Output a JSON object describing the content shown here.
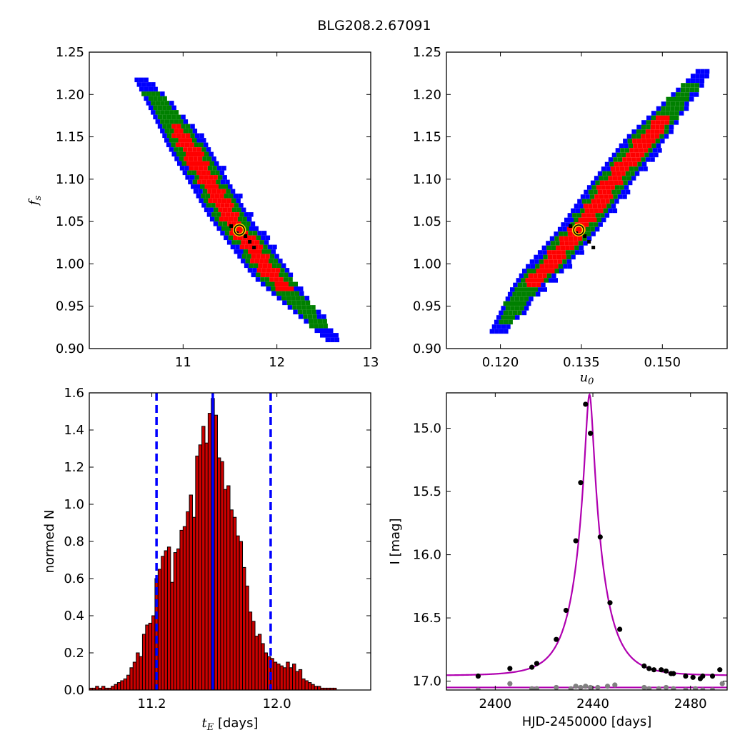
{
  "figure_title": "BLG208.2.67091",
  "chart_data": [
    {
      "id": "panel-tl",
      "type": "heatmap",
      "title": "",
      "xlabel": "",
      "ylabel": "f_s",
      "xlim": [
        10.0,
        13.0
      ],
      "ylim": [
        0.9,
        1.25
      ],
      "xticks": [
        11,
        12,
        13
      ],
      "xticklabels": [
        "11",
        "12",
        "13"
      ],
      "yticks": [
        0.9,
        0.95,
        1.0,
        1.05,
        1.1,
        1.15,
        1.2,
        1.25
      ],
      "yticklabels": [
        "0.90",
        "0.95",
        "1.00",
        "1.05",
        "1.10",
        "1.15",
        "1.20",
        "1.25"
      ],
      "ridge": {
        "x": [
          10.55,
          11.0,
          11.5,
          12.0,
          12.6
        ],
        "y": [
          1.22,
          1.15,
          1.055,
          0.98,
          0.91
        ]
      },
      "best_fit": {
        "x": 11.6,
        "y": 1.04
      },
      "colors": {
        "outer": "#0000ff",
        "middle": "#008000",
        "inner": "#ff0000",
        "peak": "#000000",
        "marker_edge": "#ffd700"
      },
      "grid": false
    },
    {
      "id": "panel-tr",
      "type": "heatmap",
      "title": "",
      "xlabel": "u_0",
      "ylabel": "",
      "xlim": [
        0.11,
        0.162
      ],
      "ylim": [
        0.9,
        1.25
      ],
      "xticks": [
        0.12,
        0.135,
        0.15
      ],
      "xticklabels": [
        "0.120",
        "0.135",
        "0.150"
      ],
      "yticks": [
        0.9,
        0.95,
        1.0,
        1.05,
        1.1,
        1.15,
        1.2,
        1.25
      ],
      "yticklabels": [
        "0.90",
        "0.95",
        "1.00",
        "1.05",
        "1.10",
        "1.15",
        "1.20",
        "1.25"
      ],
      "ridge": {
        "x": [
          0.119,
          0.125,
          0.1345,
          0.14,
          0.146,
          0.158
        ],
        "y": [
          0.915,
          0.97,
          1.04,
          1.09,
          1.14,
          1.23
        ]
      },
      "best_fit": {
        "x": 0.1345,
        "y": 1.04
      },
      "colors": {
        "outer": "#0000ff",
        "middle": "#008000",
        "inner": "#ff0000",
        "peak": "#000000",
        "marker_edge": "#ffd700"
      },
      "grid": false
    },
    {
      "id": "panel-bl",
      "type": "bar",
      "title": "",
      "xlabel": "t_E  [days]",
      "ylabel": "normed N",
      "xlim": [
        10.8,
        12.6
      ],
      "ylim": [
        0.0,
        1.6
      ],
      "xticks": [
        11.2,
        12.0
      ],
      "xticklabels": [
        "11.2",
        "12.0"
      ],
      "yticks": [
        0.0,
        0.2,
        0.4,
        0.6,
        0.8,
        1.0,
        1.2,
        1.4,
        1.6
      ],
      "yticklabels": [
        "0.0",
        "0.2",
        "0.4",
        "0.6",
        "0.8",
        "1.0",
        "1.2",
        "1.4",
        "1.6"
      ],
      "bin_start": 10.8,
      "bin_width": 0.02,
      "values": [
        0.01,
        0.01,
        0.02,
        0.01,
        0.02,
        0.01,
        0.01,
        0.02,
        0.03,
        0.04,
        0.05,
        0.06,
        0.08,
        0.12,
        0.15,
        0.2,
        0.18,
        0.3,
        0.35,
        0.36,
        0.4,
        0.6,
        0.65,
        0.72,
        0.75,
        0.77,
        0.58,
        0.74,
        0.76,
        0.86,
        0.88,
        0.96,
        1.05,
        0.93,
        1.26,
        1.32,
        1.42,
        1.33,
        1.49,
        1.57,
        1.48,
        1.25,
        1.23,
        1.08,
        1.1,
        0.97,
        0.93,
        0.83,
        0.8,
        0.66,
        0.56,
        0.42,
        0.37,
        0.29,
        0.3,
        0.25,
        0.2,
        0.18,
        0.17,
        0.15,
        0.14,
        0.13,
        0.12,
        0.15,
        0.12,
        0.14,
        0.1,
        0.11,
        0.06,
        0.05,
        0.04,
        0.03,
        0.02,
        0.02,
        0.01,
        0.01,
        0.01,
        0.01,
        0.01,
        0.0
      ],
      "median": 11.59,
      "interval": [
        11.23,
        11.96
      ],
      "colors": {
        "bars": "#cc0000",
        "bar_edge": "#000000",
        "median": "#0000ff",
        "interval": "#0000ff"
      },
      "grid": false
    },
    {
      "id": "panel-br",
      "type": "scatter",
      "title": "",
      "xlabel": "HJD-2450000 [days]",
      "ylabel": "I [mag]",
      "xlim": [
        2380,
        2495
      ],
      "ylim": [
        17.07,
        14.72
      ],
      "xticks": [
        2400,
        2440,
        2480
      ],
      "xticklabels": [
        "2400",
        "2440",
        "2480"
      ],
      "yticks": [
        15.0,
        15.5,
        16.0,
        16.5,
        17.0
      ],
      "yticklabels": [
        "15.0",
        "15.5",
        "16.0",
        "16.5",
        "17.0"
      ],
      "series": [
        {
          "color": "#000000",
          "x": [
            2393,
            2406,
            2415,
            2417,
            2425,
            2429,
            2433,
            2435,
            2437,
            2439,
            2443,
            2447,
            2451,
            2461,
            2463,
            2465,
            2468,
            2470,
            2472,
            2473,
            2478,
            2481,
            2484,
            2485,
            2489,
            2492
          ],
          "y": [
            16.96,
            16.9,
            16.89,
            16.86,
            16.67,
            16.44,
            15.89,
            15.43,
            14.81,
            15.04,
            15.86,
            16.38,
            16.59,
            16.88,
            16.9,
            16.91,
            16.91,
            16.92,
            16.94,
            16.94,
            16.96,
            16.97,
            16.98,
            16.96,
            16.96,
            16.91
          ]
        },
        {
          "color": "#808080",
          "x": [
            2393,
            2406,
            2415,
            2417,
            2425,
            2431,
            2433,
            2435,
            2437,
            2439,
            2442,
            2446,
            2449,
            2461,
            2463,
            2467,
            2470,
            2473,
            2478,
            2482,
            2485,
            2489,
            2493
          ],
          "y": [
            17.07,
            17.02,
            17.06,
            17.06,
            17.05,
            17.06,
            17.04,
            17.05,
            17.04,
            17.05,
            17.05,
            17.04,
            17.03,
            17.05,
            17.06,
            17.06,
            17.05,
            17.06,
            17.07,
            17.06,
            17.07,
            17.07,
            17.02
          ]
        }
      ],
      "model": {
        "t0": 2438.6,
        "tE": 11.6,
        "u0": 0.1345,
        "I_base": 16.956,
        "f_s": 1.04
      },
      "baseline_mag": 17.05,
      "colors": {
        "model": "#b000b0",
        "baseline": "#b000b0"
      },
      "grid": false
    }
  ]
}
